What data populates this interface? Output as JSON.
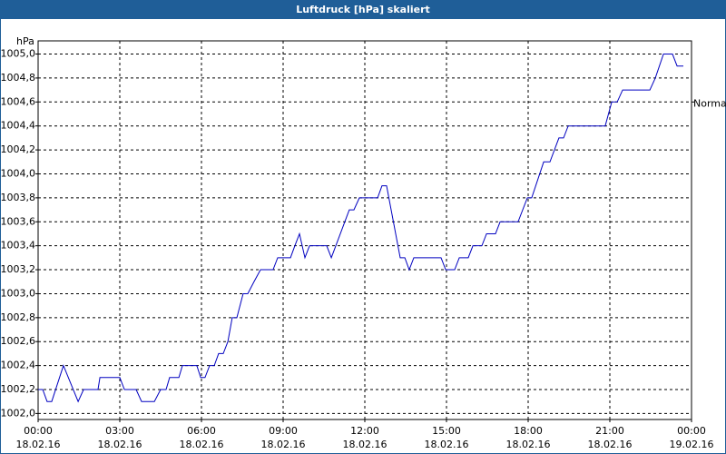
{
  "chart_data": {
    "type": "line",
    "title": "Luftdruck [hPa] skaliert",
    "ylabel": "hPa",
    "annotations": [
      {
        "text": "Normal",
        "y": 1004.6
      }
    ],
    "grid": true,
    "xlim": [
      0,
      24
    ],
    "xticks": [
      {
        "value": 0,
        "label": "00:00",
        "date": "18.02.16"
      },
      {
        "value": 3,
        "label": "03:00",
        "date": "18.02.16"
      },
      {
        "value": 6,
        "label": "06:00",
        "date": "18.02.16"
      },
      {
        "value": 9,
        "label": "09:00",
        "date": "18.02.16"
      },
      {
        "value": 12,
        "label": "12:00",
        "date": "18.02.16"
      },
      {
        "value": 15,
        "label": "15:00",
        "date": "18.02.16"
      },
      {
        "value": 18,
        "label": "18:00",
        "date": "18.02.16"
      },
      {
        "value": 21,
        "label": "21:00",
        "date": "18.02.16"
      },
      {
        "value": 24,
        "label": "00:00",
        "date": "19.02.16"
      }
    ],
    "ylim": [
      1001.95,
      1005.11
    ],
    "yticks": [
      {
        "value": 1002.0,
        "label": "1002,0"
      },
      {
        "value": 1002.2,
        "label": "1002,2"
      },
      {
        "value": 1002.4,
        "label": "1002,4"
      },
      {
        "value": 1002.6,
        "label": "1002,6"
      },
      {
        "value": 1002.8,
        "label": "1002,8"
      },
      {
        "value": 1003.0,
        "label": "1003,0"
      },
      {
        "value": 1003.2,
        "label": "1003,2"
      },
      {
        "value": 1003.4,
        "label": "1003,4"
      },
      {
        "value": 1003.6,
        "label": "1003,6"
      },
      {
        "value": 1003.8,
        "label": "1003,8"
      },
      {
        "value": 1004.0,
        "label": "1004,0"
      },
      {
        "value": 1004.2,
        "label": "1004,2"
      },
      {
        "value": 1004.4,
        "label": "1004,4"
      },
      {
        "value": 1004.6,
        "label": "1004,6"
      },
      {
        "value": 1004.8,
        "label": "1004,8"
      },
      {
        "value": 1005.0,
        "label": "1005,0"
      }
    ],
    "color": "#0000c0",
    "x": [
      0,
      0.17,
      0.33,
      0.5,
      0.93,
      1.47,
      1.67,
      2.2,
      2.27,
      2.87,
      3,
      3.17,
      3.6,
      3.8,
      4.27,
      4.5,
      4.7,
      4.83,
      5.17,
      5.3,
      5.7,
      5.83,
      5.97,
      6.13,
      6.3,
      6.47,
      6.63,
      6.8,
      6.97,
      7.13,
      7.3,
      7.53,
      7.7,
      7.93,
      8.17,
      8.63,
      8.8,
      9.27,
      9.43,
      9.6,
      9.8,
      9.97,
      10.6,
      10.77,
      11.43,
      11.6,
      11.8,
      12.47,
      12.63,
      12.8,
      13.3,
      13.47,
      13.63,
      13.8,
      14.8,
      14.97,
      15.3,
      15.47,
      15.8,
      15.97,
      16.3,
      16.47,
      16.8,
      16.97,
      17.63,
      17.97,
      18.13,
      18.57,
      18.8,
      19.13,
      19.3,
      19.47,
      20.83,
      21.07,
      21.27,
      21.47,
      22.47,
      22.67,
      22.97,
      23.3,
      23.47,
      23.7
    ],
    "values": [
      1002.2,
      1002.2,
      1002.1,
      1002.1,
      1002.4,
      1002.1,
      1002.2,
      1002.2,
      1002.3,
      1002.3,
      1002.3,
      1002.2,
      1002.2,
      1002.1,
      1002.1,
      1002.2,
      1002.2,
      1002.3,
      1002.3,
      1002.4,
      1002.4,
      1002.4,
      1002.3,
      1002.3,
      1002.4,
      1002.4,
      1002.5,
      1002.5,
      1002.6,
      1002.8,
      1002.8,
      1003.0,
      1003.0,
      1003.1,
      1003.2,
      1003.2,
      1003.3,
      1003.3,
      1003.4,
      1003.5,
      1003.3,
      1003.4,
      1003.4,
      1003.3,
      1003.7,
      1003.7,
      1003.8,
      1003.8,
      1003.9,
      1003.9,
      1003.3,
      1003.3,
      1003.2,
      1003.3,
      1003.3,
      1003.2,
      1003.2,
      1003.3,
      1003.3,
      1003.4,
      1003.4,
      1003.5,
      1003.5,
      1003.6,
      1003.6,
      1003.8,
      1003.8,
      1004.1,
      1004.1,
      1004.3,
      1004.3,
      1004.4,
      1004.4,
      1004.6,
      1004.6,
      1004.7,
      1004.7,
      1004.8,
      1005.0,
      1005.0,
      1004.9,
      1004.9
    ]
  }
}
